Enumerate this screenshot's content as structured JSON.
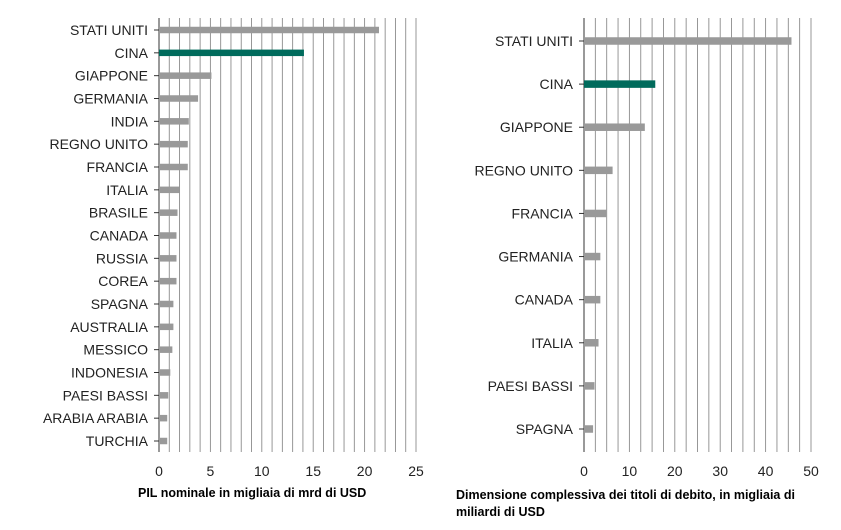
{
  "colors": {
    "bar": "#999999",
    "highlight": "#006b5c",
    "grid": "#8c8c8c",
    "axis": "#333333"
  },
  "chart_data": [
    {
      "type": "bar",
      "orientation": "horizontal",
      "categories": [
        "STATI UNITI",
        "CINA",
        "GIAPPONE",
        "GERMANIA",
        "INDIA",
        "REGNO UNITO",
        "FRANCIA",
        "ITALIA",
        "BRASILE",
        "CANADA",
        "RUSSIA",
        "COREA",
        "SPAGNA",
        "AUSTRALIA",
        "MESSICO",
        "INDONESIA",
        "PAESI BASSI",
        "ARABIA ARABIA",
        "TURCHIA"
      ],
      "values": [
        21.4,
        14.1,
        5.1,
        3.8,
        2.9,
        2.8,
        2.8,
        2.0,
        1.8,
        1.7,
        1.7,
        1.7,
        1.4,
        1.4,
        1.3,
        1.1,
        0.9,
        0.8,
        0.8
      ],
      "highlight": "CINA",
      "xlim": [
        0,
        25
      ],
      "xticks": [
        0,
        5,
        10,
        15,
        20,
        25
      ],
      "xlabel": "PIL nominale in migliaia di mrd di USD",
      "grid": true
    },
    {
      "type": "bar",
      "orientation": "horizontal",
      "categories": [
        "STATI UNITI",
        "CINA",
        "GIAPPONE",
        "REGNO UNITO",
        "FRANCIA",
        "GERMANIA",
        "CANADA",
        "ITALIA",
        "PAESI BASSI",
        "SPAGNA"
      ],
      "values": [
        45.7,
        15.7,
        13.4,
        6.3,
        4.9,
        3.6,
        3.6,
        3.2,
        2.3,
        2.0
      ],
      "highlight": "CINA",
      "xlim": [
        0,
        50
      ],
      "xticks": [
        0,
        10,
        20,
        30,
        40,
        50
      ],
      "xlabel": [
        "Dimensione complessiva dei titoli di debito, in migliaia di",
        "miliardi di USD"
      ],
      "grid": true
    }
  ]
}
